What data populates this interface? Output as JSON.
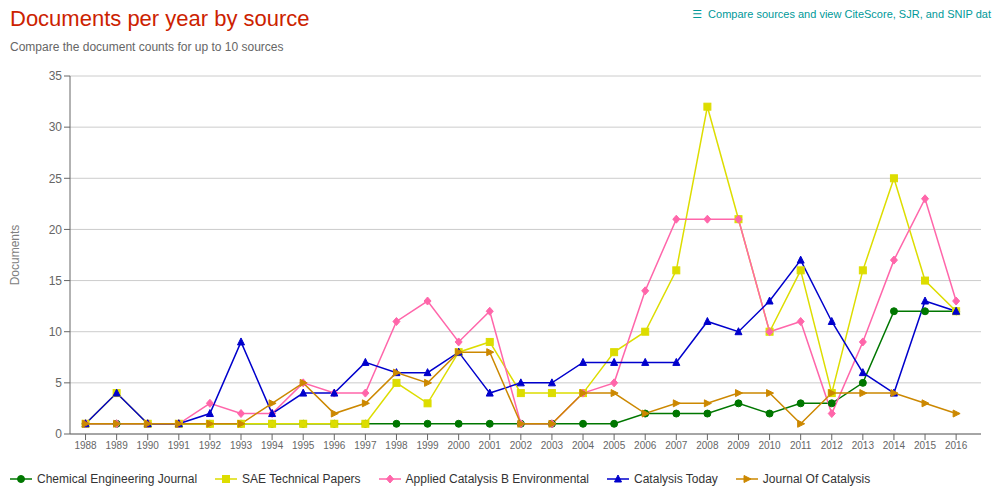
{
  "chart_data": {
    "type": "line",
    "title": "Documents per year by source",
    "subtitle": "Compare the document counts for up to 10 sources",
    "annotations": [
      "☰  Compare sources and view CiteScore, SJR, and SNIP dat"
    ],
    "y_label": "Documents",
    "x": [
      1988,
      1989,
      1990,
      1991,
      1992,
      1993,
      1994,
      1995,
      1996,
      1997,
      1998,
      1999,
      2000,
      2001,
      2002,
      2003,
      2004,
      2005,
      2006,
      2007,
      2008,
      2009,
      2010,
      2011,
      2012,
      2013,
      2014,
      2015,
      2016
    ],
    "xlim": [
      1987.5,
      2016.8
    ],
    "xticks": [
      1988,
      1989,
      1990,
      1991,
      1992,
      1993,
      1994,
      1995,
      1996,
      1997,
      1998,
      1999,
      2000,
      2001,
      2002,
      2003,
      2004,
      2005,
      2006,
      2007,
      2008,
      2009,
      2010,
      2011,
      2012,
      2013,
      2014,
      2015,
      2016
    ],
    "ylim": [
      0,
      35
    ],
    "yticks": [
      0,
      5,
      10,
      15,
      20,
      25,
      30,
      35
    ],
    "grid": true,
    "legend": "lower left",
    "series": [
      {
        "name": "Chemical Engineering Journal",
        "color": "#007700",
        "marker": "circle",
        "values": [
          1,
          1,
          1,
          1,
          1,
          1,
          1,
          1,
          1,
          1,
          1,
          1,
          1,
          1,
          1,
          1,
          1,
          1,
          2,
          2,
          2,
          3,
          2,
          3,
          3,
          5,
          12,
          12,
          12
        ]
      },
      {
        "name": "SAE Technical Papers",
        "color": "#dddd00",
        "marker": "square",
        "values": [
          1,
          4,
          1,
          1,
          1,
          1,
          1,
          1,
          1,
          1,
          5,
          3,
          8,
          9,
          4,
          4,
          4,
          8,
          10,
          16,
          32,
          21,
          10,
          16,
          4,
          16,
          25,
          15,
          12
        ]
      },
      {
        "name": "Applied Catalysis B Environmental",
        "color": "#ff66aa",
        "marker": "diamond",
        "values": [
          1,
          1,
          1,
          1,
          3,
          2,
          2,
          5,
          4,
          4,
          11,
          13,
          9,
          12,
          1,
          1,
          4,
          5,
          14,
          21,
          21,
          21,
          10,
          11,
          2,
          9,
          17,
          23,
          13
        ]
      },
      {
        "name": "Catalysis Today",
        "color": "#0000cc",
        "marker": "triangle",
        "values": [
          1,
          4,
          1,
          1,
          2,
          9,
          2,
          4,
          4,
          7,
          6,
          6,
          8,
          4,
          5,
          5,
          7,
          7,
          7,
          7,
          11,
          10,
          13,
          17,
          11,
          6,
          4,
          13,
          12
        ]
      },
      {
        "name": "Journal Of Catalysis",
        "color": "#cc8800",
        "marker": "triangle-right",
        "values": [
          1,
          1,
          1,
          1,
          1,
          1,
          3,
          5,
          2,
          3,
          6,
          5,
          8,
          8,
          1,
          1,
          4,
          4,
          2,
          3,
          3,
          4,
          4,
          1,
          4,
          4,
          4,
          3,
          2
        ]
      }
    ],
    "title_color": "#cc2200",
    "subtitle_color": "#666666",
    "annotation_color": "#009999"
  }
}
